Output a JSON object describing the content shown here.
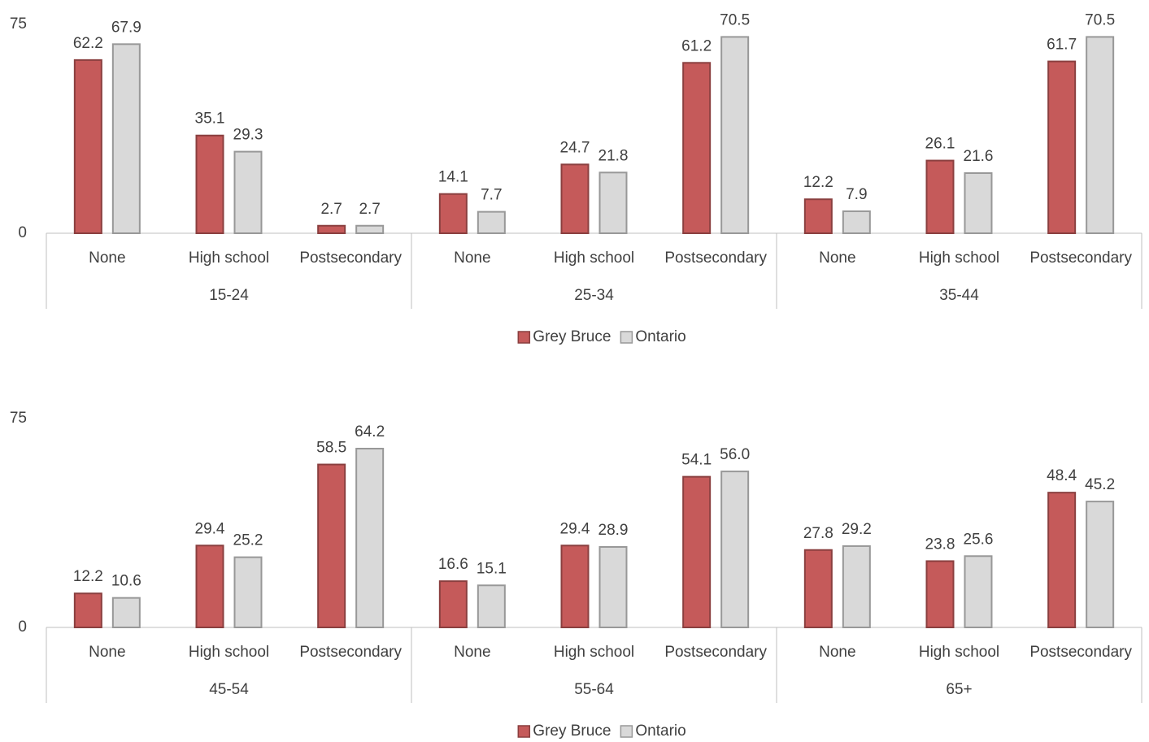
{
  "chart_data": [
    {
      "type": "bar",
      "categories": [
        "None",
        "High school",
        "Postsecondary",
        "None",
        "High school",
        "Postsecondary",
        "None",
        "High school",
        "Postsecondary"
      ],
      "groups": [
        "15-24",
        "25-34",
        "35-44"
      ],
      "series": [
        {
          "name": "Grey Bruce",
          "color": "#c55a5a",
          "values": [
            62.2,
            35.1,
            2.7,
            14.1,
            24.7,
            61.2,
            12.2,
            26.1,
            61.7
          ]
        },
        {
          "name": "Ontario",
          "color": "#d9d9d9",
          "values": [
            67.9,
            29.3,
            2.7,
            7.7,
            21.8,
            70.5,
            7.9,
            21.6,
            70.5
          ]
        }
      ],
      "ylim": [
        0,
        75
      ],
      "yticks": [
        0,
        75
      ],
      "legend": "bottom"
    },
    {
      "type": "bar",
      "categories": [
        "None",
        "High school",
        "Postsecondary",
        "None",
        "High school",
        "Postsecondary",
        "None",
        "High school",
        "Postsecondary"
      ],
      "groups": [
        "45-54",
        "55-64",
        "65+"
      ],
      "series": [
        {
          "name": "Grey Bruce",
          "color": "#c55a5a",
          "values": [
            12.2,
            29.4,
            58.5,
            16.6,
            29.4,
            54.1,
            27.8,
            23.8,
            48.4
          ]
        },
        {
          "name": "Ontario",
          "color": "#d9d9d9",
          "values": [
            10.6,
            25.2,
            64.2,
            15.1,
            28.9,
            56,
            29.2,
            25.6,
            45.2
          ],
          "value_labels": [
            "10.6",
            "25.2",
            "64.2",
            "15.1",
            "28.9",
            "56.0",
            "29.2",
            "25.6",
            "45.2"
          ]
        }
      ],
      "ylim": [
        0,
        75
      ],
      "yticks": [
        0,
        75
      ],
      "legend": "bottom"
    }
  ]
}
